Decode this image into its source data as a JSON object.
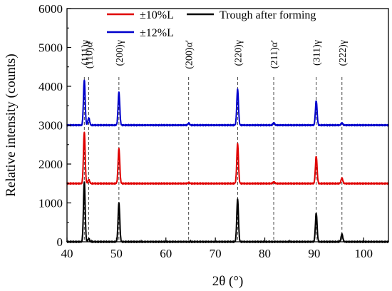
{
  "chart_data": {
    "type": "line",
    "xlabel": "2θ (°)",
    "ylabel": "Relative intensity (counts)",
    "xlim": [
      40,
      105
    ],
    "ylim": [
      0,
      6000
    ],
    "x_ticks": [
      "40",
      "50",
      "60",
      "70",
      "80",
      "90",
      "100"
    ],
    "x_tick_values": [
      40,
      50,
      60,
      70,
      80,
      90,
      100
    ],
    "y_ticks": [
      "0",
      "1000",
      "2000",
      "3000",
      "4000",
      "5000",
      "6000"
    ],
    "y_tick_values": [
      0,
      1000,
      2000,
      3000,
      4000,
      5000,
      6000
    ],
    "legend_position": "top",
    "series": [
      {
        "name": "Trough after forming",
        "color": "#000000",
        "baseline": 0,
        "peaks": [
          {
            "x": 43.5,
            "y": 1550
          },
          {
            "x": 44.4,
            "y": 80
          },
          {
            "x": 50.5,
            "y": 1000
          },
          {
            "x": 74.5,
            "y": 1100
          },
          {
            "x": 90.4,
            "y": 740
          },
          {
            "x": 95.6,
            "y": 200
          }
        ]
      },
      {
        "name": "±10%L",
        "color": "#e00000",
        "baseline": 1500,
        "peaks": [
          {
            "x": 43.5,
            "y": 2830
          },
          {
            "x": 44.4,
            "y": 1600
          },
          {
            "x": 50.5,
            "y": 2400
          },
          {
            "x": 64.6,
            "y": 1520
          },
          {
            "x": 74.5,
            "y": 2530
          },
          {
            "x": 81.8,
            "y": 1540
          },
          {
            "x": 90.4,
            "y": 2200
          },
          {
            "x": 95.6,
            "y": 1640
          }
        ]
      },
      {
        "name": "±12%L",
        "color": "#0000cc",
        "baseline": 3000,
        "peaks": [
          {
            "x": 43.5,
            "y": 4170
          },
          {
            "x": 44.4,
            "y": 3190
          },
          {
            "x": 50.5,
            "y": 3850
          },
          {
            "x": 64.6,
            "y": 3050
          },
          {
            "x": 74.5,
            "y": 3930
          },
          {
            "x": 81.8,
            "y": 3060
          },
          {
            "x": 90.4,
            "y": 3630
          },
          {
            "x": 95.6,
            "y": 3060
          }
        ]
      }
    ],
    "reference_lines": [
      {
        "x": 43.5,
        "label": "(111)γ"
      },
      {
        "x": 44.4,
        "label": "(110)α′"
      },
      {
        "x": 50.5,
        "label": "(200)γ"
      },
      {
        "x": 64.6,
        "label": "(200)α′"
      },
      {
        "x": 74.5,
        "label": "(220)γ"
      },
      {
        "x": 81.8,
        "label": "(211)α′"
      },
      {
        "x": 90.4,
        "label": "(311)γ"
      },
      {
        "x": 95.6,
        "label": "(222)γ"
      }
    ]
  }
}
